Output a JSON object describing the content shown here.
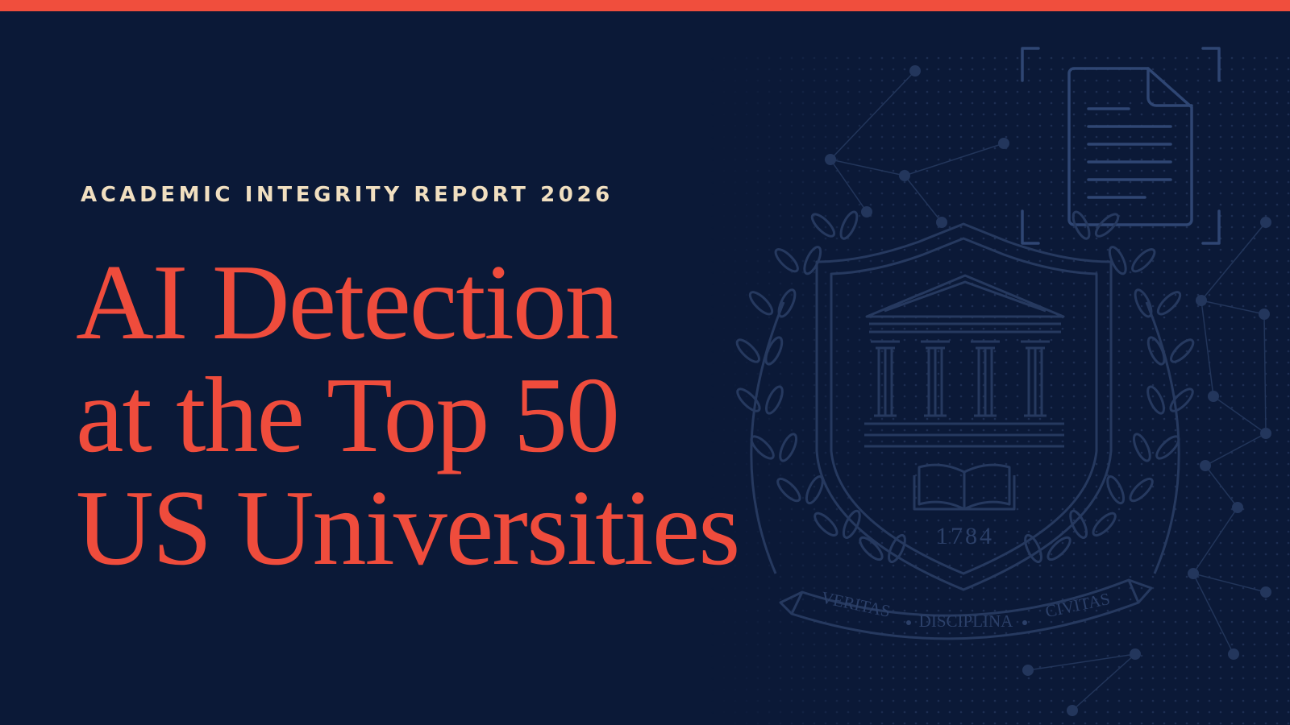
{
  "eyebrow": "ACADEMIC INTEGRITY REPORT 2026",
  "title_lines": [
    "AI Detection",
    "at the Top 50",
    "US Universities"
  ],
  "crest": {
    "year": "1784",
    "motto": [
      "VERITAS",
      "DISCIPLINA",
      "CIVITAS"
    ]
  }
}
